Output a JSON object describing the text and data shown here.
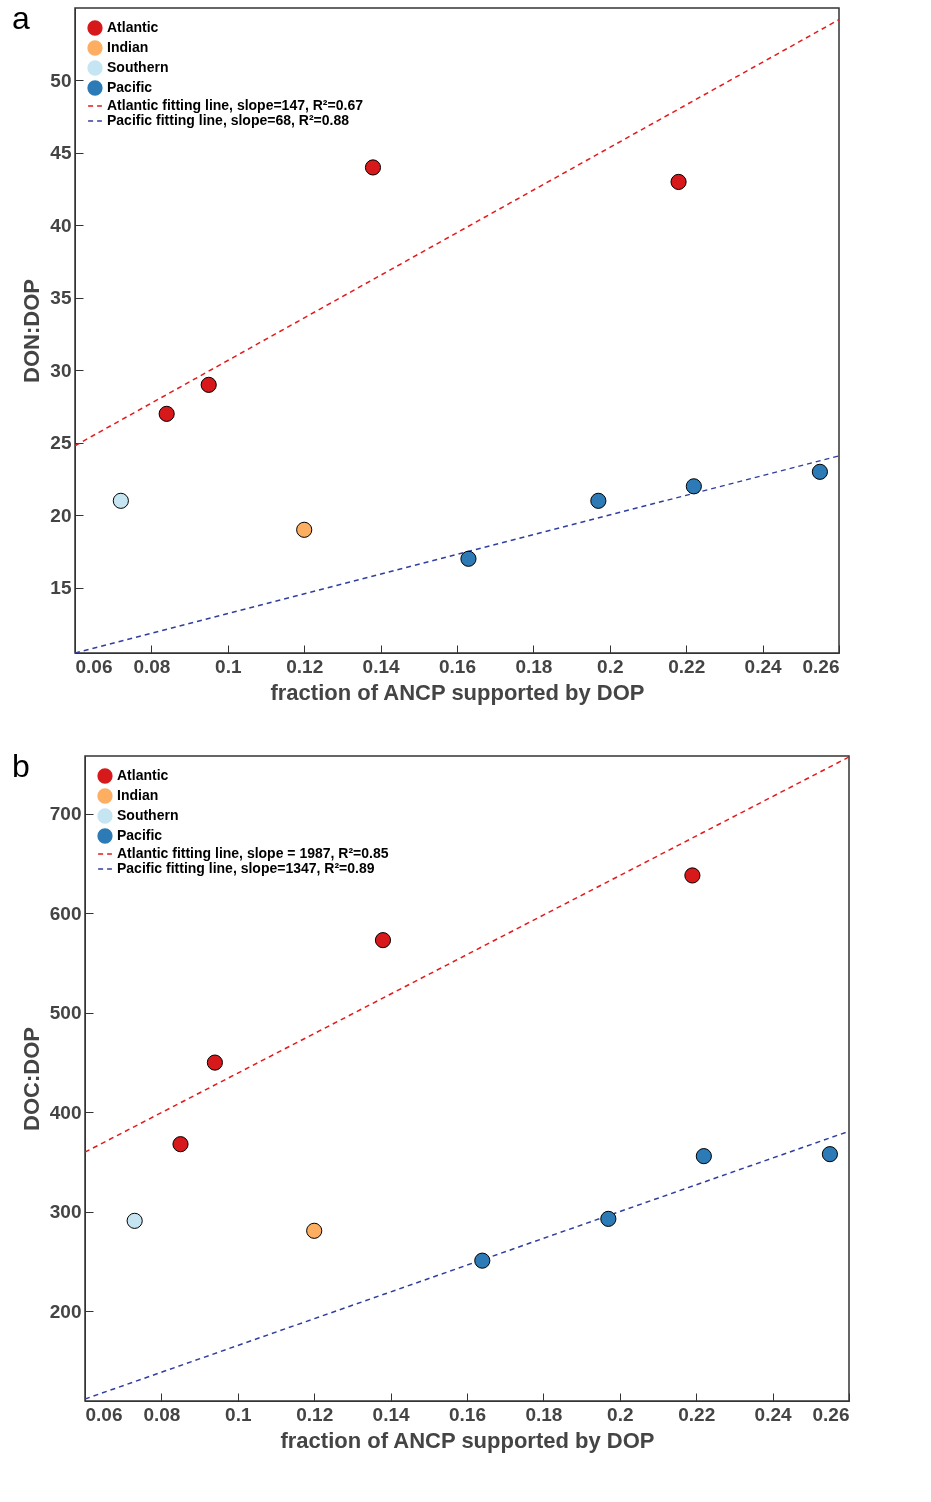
{
  "chart_data": [
    {
      "type": "scatter",
      "xlabel": "fraction of ANCP supported by DOP",
      "ylabel": "DON:DOP",
      "annotations": [
        "a"
      ],
      "xlim": [
        0.06,
        0.26
      ],
      "ylim": [
        10.5,
        55
      ],
      "xticks": [
        0.06,
        0.08,
        0.1,
        0.12,
        0.14,
        0.16,
        0.18,
        0.2,
        0.22,
        0.24,
        0.26
      ],
      "yticks": [
        15,
        20,
        25,
        30,
        35,
        40,
        45,
        50
      ],
      "grid": false,
      "legend": "top left",
      "series": [
        {
          "name": "Atlantic",
          "type": "scatter",
          "marker": "circle",
          "color": "#d7191c",
          "x": [
            0.084,
            0.095,
            0.138,
            0.218
          ],
          "values": [
            27,
            29,
            44,
            43
          ]
        },
        {
          "name": "Indian",
          "type": "scatter",
          "marker": "circle",
          "color": "#fdae61",
          "x": [
            0.12
          ],
          "values": [
            19
          ]
        },
        {
          "name": "Southern",
          "type": "scatter",
          "marker": "circle",
          "color": "#c6e5f3",
          "x": [
            0.072
          ],
          "values": [
            21
          ]
        },
        {
          "name": "Pacific",
          "type": "scatter",
          "marker": "circle",
          "color": "#2c7bb6",
          "x": [
            0.163,
            0.197,
            0.222,
            0.255
          ],
          "values": [
            17,
            21,
            22,
            23
          ]
        },
        {
          "name": "Atlantic fitting line, slope=147, R²=0.67",
          "type": "line",
          "line_style": "dashed",
          "color": "#e31a1c",
          "x": [
            0.06,
            0.26
          ],
          "values": [
            24.8,
            54.2
          ]
        },
        {
          "name": "Pacific fitting line, slope=68, R²=0.88",
          "type": "line",
          "line_style": "dashed",
          "color": "#303f9f",
          "x": [
            0.06,
            0.26
          ],
          "values": [
            10.5,
            24.1
          ]
        }
      ]
    },
    {
      "type": "scatter",
      "xlabel": "fraction of ANCP supported by DOP",
      "ylabel": "DOC:DOP",
      "annotations": [
        "b"
      ],
      "xlim": [
        0.06,
        0.26
      ],
      "ylim": [
        110,
        758
      ],
      "xticks": [
        0.06,
        0.08,
        0.1,
        0.12,
        0.14,
        0.16,
        0.18,
        0.2,
        0.22,
        0.24,
        0.26
      ],
      "yticks": [
        200,
        300,
        400,
        500,
        600,
        700
      ],
      "grid": false,
      "legend": "top left",
      "series": [
        {
          "name": "Atlantic",
          "type": "scatter",
          "marker": "circle",
          "color": "#d7191c",
          "x": [
            0.085,
            0.094,
            0.138,
            0.219
          ],
          "values": [
            368,
            450,
            573,
            638
          ]
        },
        {
          "name": "Indian",
          "type": "scatter",
          "marker": "circle",
          "color": "#fdae61",
          "x": [
            0.12
          ],
          "values": [
            281
          ]
        },
        {
          "name": "Southern",
          "type": "scatter",
          "marker": "circle",
          "color": "#c6e5f3",
          "x": [
            0.073
          ],
          "values": [
            291
          ]
        },
        {
          "name": "Pacific",
          "type": "scatter",
          "marker": "circle",
          "color": "#2c7bb6",
          "x": [
            0.164,
            0.197,
            0.222,
            0.255
          ],
          "values": [
            251,
            293,
            356,
            358
          ]
        },
        {
          "name": "Atlantic fitting line, slope = 1987, R²=0.85",
          "type": "line",
          "line_style": "dashed",
          "color": "#e31a1c",
          "x": [
            0.06,
            0.26
          ],
          "values": [
            360,
            757
          ]
        },
        {
          "name": "Pacific fitting line, slope=1347, R²=0.89",
          "type": "line",
          "line_style": "dashed",
          "color": "#303f9f",
          "x": [
            0.06,
            0.26
          ],
          "values": [
            112,
            381
          ]
        }
      ]
    }
  ]
}
